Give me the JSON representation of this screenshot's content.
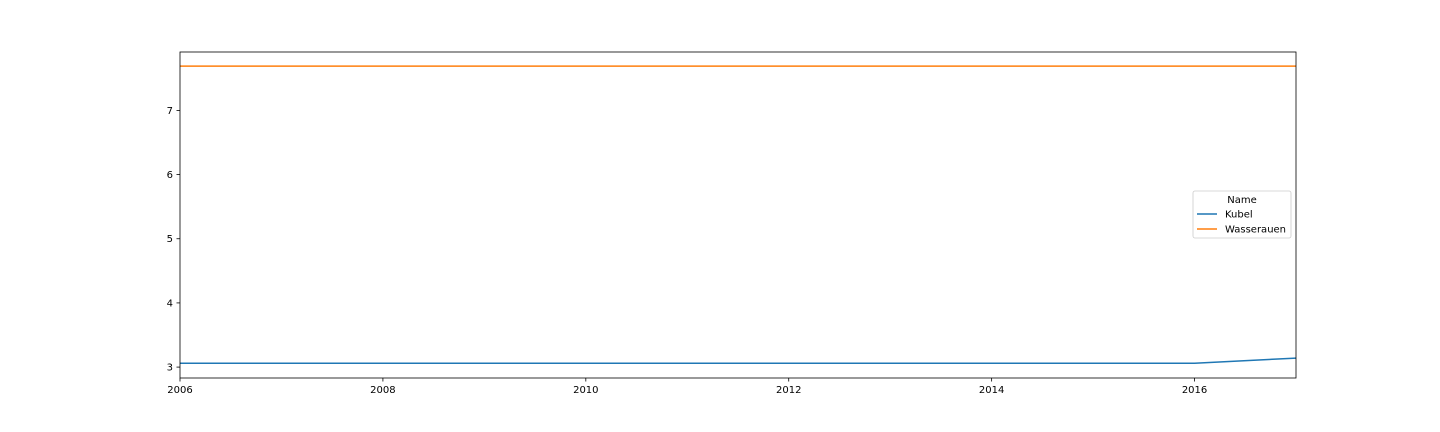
{
  "chart_data": {
    "type": "line",
    "title": "",
    "xlabel": "",
    "ylabel": "",
    "x": [
      2006,
      2007,
      2008,
      2009,
      2010,
      2011,
      2012,
      2013,
      2014,
      2015,
      2016,
      2017
    ],
    "series": [
      {
        "name": "Kubel",
        "color": "#1f77b4",
        "values": [
          3.06,
          3.06,
          3.06,
          3.06,
          3.06,
          3.06,
          3.06,
          3.06,
          3.06,
          3.06,
          3.06,
          3.14
        ]
      },
      {
        "name": "Wasserauen",
        "color": "#ff7f0e",
        "values": [
          7.69,
          7.69,
          7.69,
          7.69,
          7.69,
          7.69,
          7.69,
          7.69,
          7.69,
          7.69,
          7.69,
          7.69
        ]
      }
    ],
    "xlim": [
      2006,
      2017
    ],
    "ylim": [
      2.83,
      7.91
    ],
    "xticks": [
      2006,
      2008,
      2010,
      2012,
      2014,
      2016
    ],
    "xtick_labels": [
      "2006",
      "2008",
      "2010",
      "2012",
      "2014",
      "2016"
    ],
    "yticks": [
      3,
      4,
      5,
      6,
      7
    ],
    "ytick_labels": [
      "3",
      "4",
      "5",
      "6",
      "7"
    ],
    "grid": false,
    "legend": {
      "title": "Name",
      "placement": "center-right"
    }
  }
}
